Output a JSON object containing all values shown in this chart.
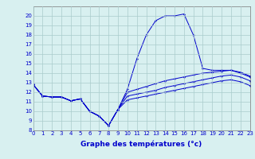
{
  "xlabel": "Graphe des températures (°c)",
  "x_hours": [
    0,
    1,
    2,
    3,
    4,
    5,
    6,
    7,
    8,
    9,
    10,
    11,
    12,
    13,
    14,
    15,
    16,
    17,
    18,
    19,
    20,
    21,
    22,
    23
  ],
  "temp_main": [
    12.8,
    11.6,
    11.5,
    11.5,
    11.1,
    11.3,
    10.0,
    9.5,
    8.5,
    10.2,
    12.3,
    15.5,
    18.0,
    19.5,
    20.0,
    20.0,
    20.2,
    18.0,
    14.5,
    14.3,
    14.3,
    14.3,
    14.0,
    13.6
  ],
  "temp_line2": [
    12.8,
    11.6,
    11.5,
    11.5,
    11.1,
    11.3,
    10.0,
    9.5,
    8.5,
    10.2,
    12.0,
    12.3,
    12.6,
    12.9,
    13.2,
    13.4,
    13.6,
    13.8,
    14.0,
    14.1,
    14.2,
    14.3,
    14.1,
    13.7
  ],
  "temp_line3": [
    12.8,
    11.6,
    11.5,
    11.5,
    11.1,
    11.3,
    10.0,
    9.5,
    8.5,
    10.2,
    11.6,
    11.8,
    12.0,
    12.2,
    12.5,
    12.7,
    12.9,
    13.1,
    13.3,
    13.5,
    13.7,
    13.8,
    13.6,
    13.2
  ],
  "temp_line4": [
    12.8,
    11.6,
    11.5,
    11.5,
    11.1,
    11.3,
    10.0,
    9.5,
    8.5,
    10.2,
    11.2,
    11.4,
    11.6,
    11.8,
    12.0,
    12.2,
    12.4,
    12.6,
    12.8,
    13.0,
    13.2,
    13.3,
    13.1,
    12.7
  ],
  "ylim_min": 8,
  "ylim_max": 21,
  "xlim_min": 0,
  "xlim_max": 23,
  "yticks": [
    8,
    9,
    10,
    11,
    12,
    13,
    14,
    15,
    16,
    17,
    18,
    19,
    20
  ],
  "line_color": "#0000cc",
  "bg_color": "#d8f0f0",
  "grid_color": "#aacccc",
  "label_color": "#0000cc",
  "tick_fontsize": 5.0,
  "xlabel_fontsize": 6.5
}
